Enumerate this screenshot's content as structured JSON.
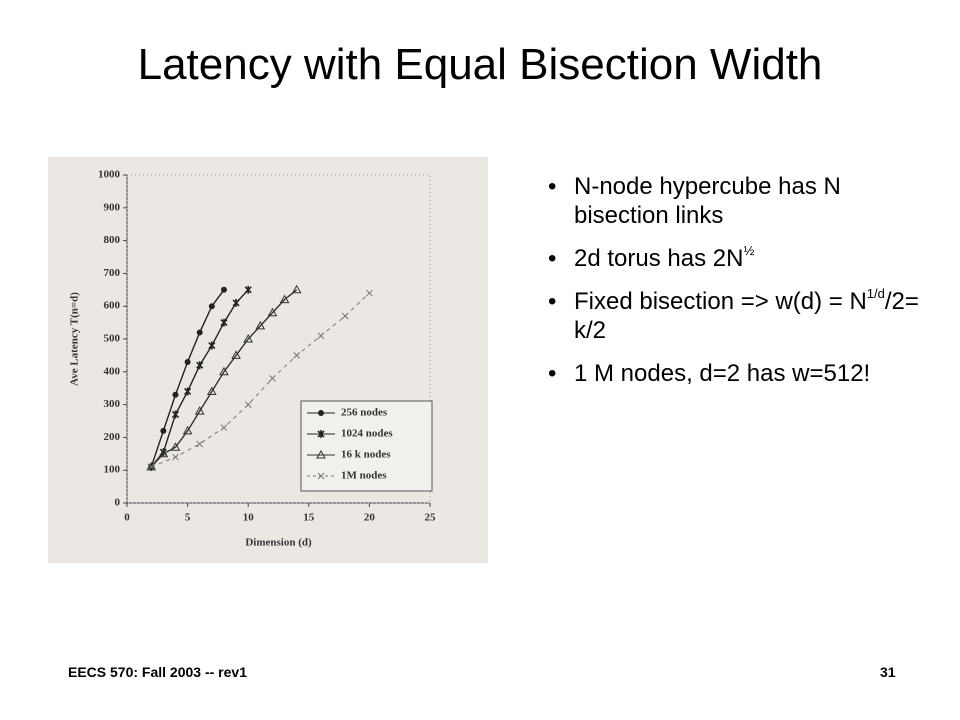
{
  "header": {
    "title": "Latency with Equal Bisection Width"
  },
  "bullets": [
    {
      "parts": [
        {
          "text": "N-node hypercube has N bisection links"
        }
      ]
    },
    {
      "parts": [
        {
          "text": "2d torus has 2N"
        },
        {
          "text": "½",
          "sup": true
        }
      ]
    },
    {
      "parts": [
        {
          "text": "Fixed bisection => w(d) = N"
        },
        {
          "text": "1/d",
          "sup": true
        },
        {
          "text": "/2= k/2"
        }
      ]
    },
    {
      "parts": [
        {
          "text": "1 M nodes, d=2 has w=512!"
        }
      ]
    }
  ],
  "footer": {
    "course": "EECS 570: Fall 2003 -- rev1",
    "page": "31"
  },
  "chart_data": {
    "type": "line",
    "xlabel": "Dimension (d)",
    "ylabel": "Ave Latency T(n=d)",
    "xlim": [
      0,
      25
    ],
    "xticks": [
      0,
      5,
      10,
      15,
      20,
      25
    ],
    "ylim": [
      0,
      1000
    ],
    "yticks": [
      0,
      100,
      200,
      300,
      400,
      500,
      600,
      700,
      800,
      900,
      1000
    ],
    "legend": "lower right",
    "series": [
      {
        "name": "256 nodes",
        "color": "#222222",
        "marker": "circle",
        "dash": false,
        "x": [
          2,
          3,
          4,
          5,
          6,
          7,
          8
        ],
        "values": [
          110,
          220,
          330,
          430,
          520,
          600,
          650
        ]
      },
      {
        "name": "1024 nodes",
        "color": "#222222",
        "marker": "star",
        "dash": false,
        "x": [
          2,
          3,
          4,
          5,
          6,
          7,
          8,
          9,
          10
        ],
        "values": [
          110,
          155,
          270,
          340,
          420,
          480,
          550,
          610,
          650
        ]
      },
      {
        "name": "16 k nodes",
        "color": "#333333",
        "marker": "triangle",
        "dash": false,
        "x": [
          2,
          3,
          4,
          5,
          6,
          7,
          8,
          9,
          10,
          11,
          12,
          13,
          14
        ],
        "values": [
          110,
          150,
          170,
          220,
          280,
          340,
          400,
          450,
          500,
          540,
          580,
          620,
          650
        ]
      },
      {
        "name": "1M nodes",
        "color": "#777777",
        "marker": "cross",
        "dash": true,
        "x": [
          2,
          4,
          6,
          8,
          10,
          12,
          14,
          16,
          18,
          20
        ],
        "values": [
          110,
          140,
          180,
          230,
          300,
          380,
          450,
          510,
          570,
          640
        ]
      }
    ]
  }
}
